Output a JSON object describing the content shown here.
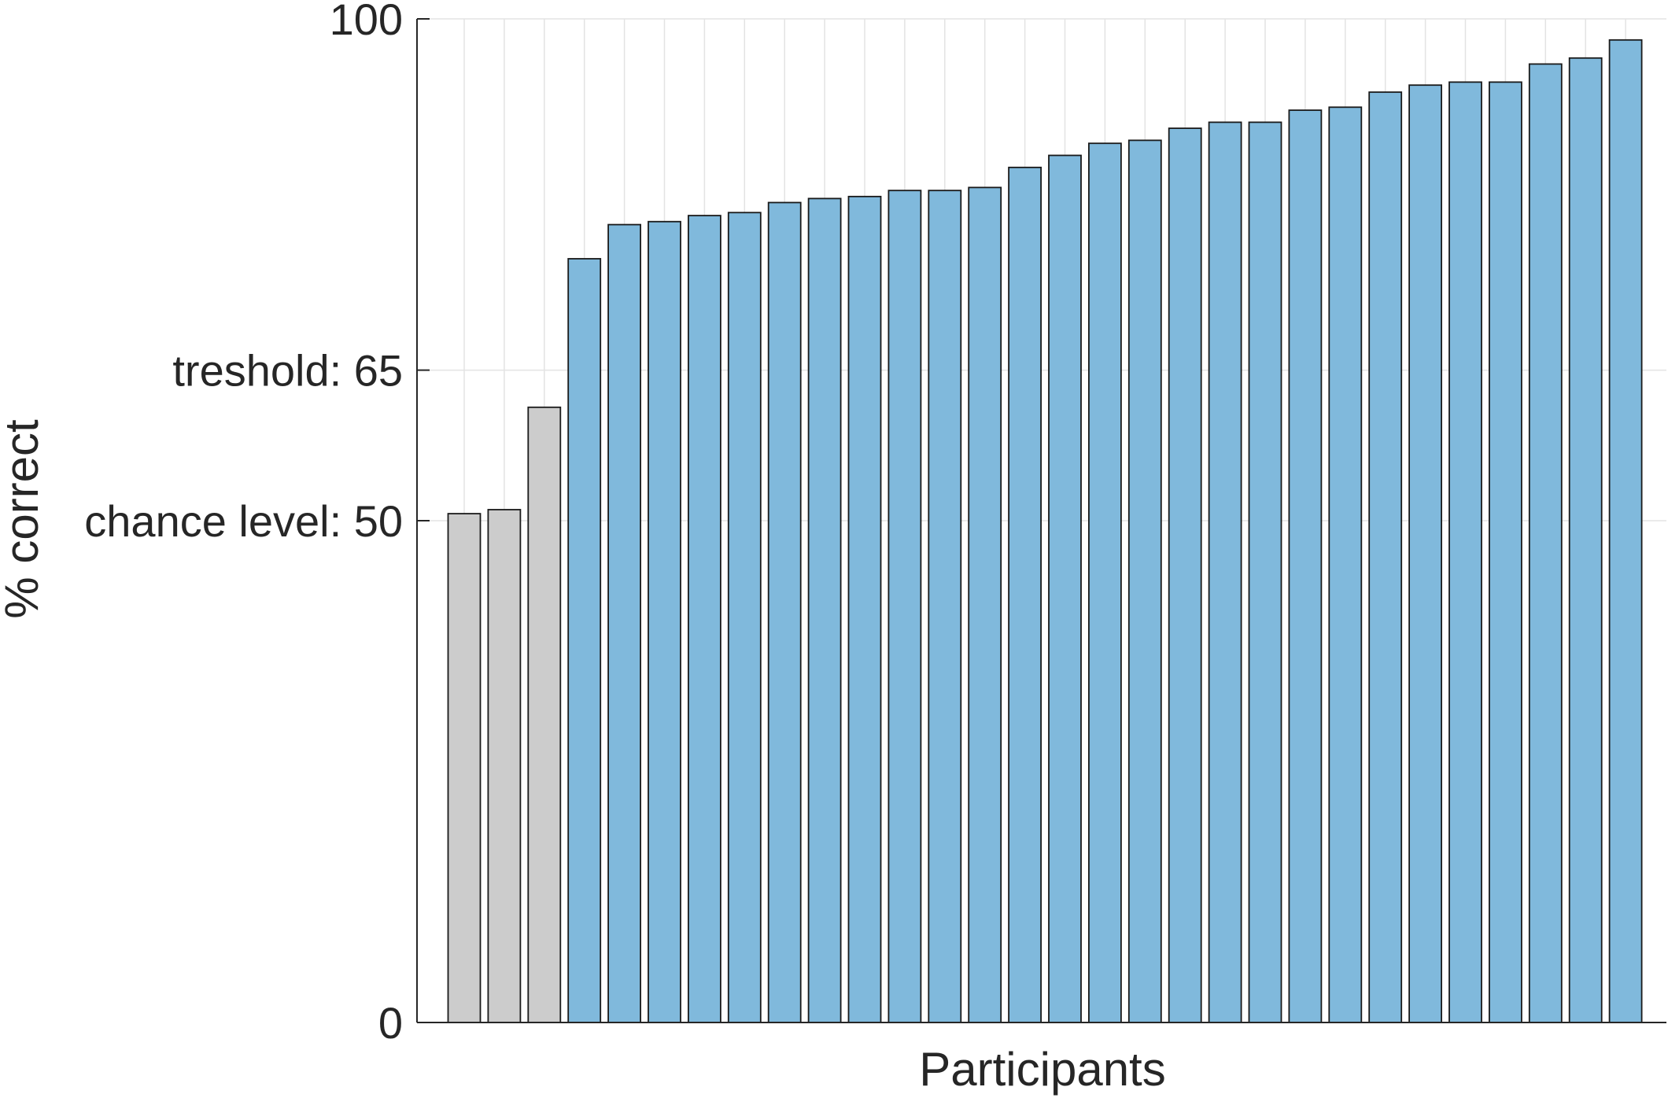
{
  "chart_data": {
    "type": "bar",
    "xlabel": "Participants",
    "ylabel": "% correct",
    "ylim": [
      0,
      100
    ],
    "yticks": [
      {
        "value": 0,
        "label": "0"
      },
      {
        "value": 50,
        "label": "chance level: 50"
      },
      {
        "value": 65,
        "label": "treshold: 65"
      },
      {
        "value": 100,
        "label": "100"
      }
    ],
    "grid": true,
    "colors": {
      "below_threshold": "#cccccc",
      "above_threshold": "#80b9dc",
      "edge": "#1a1a1a",
      "grid": "#e3e3e3",
      "axis": "#262626"
    },
    "threshold": 65,
    "values": [
      50.7,
      51.1,
      61.3,
      76.1,
      79.5,
      79.8,
      80.4,
      80.7,
      81.7,
      82.1,
      82.3,
      82.9,
      82.9,
      83.2,
      85.2,
      86.4,
      87.6,
      87.9,
      89.1,
      89.7,
      89.7,
      90.9,
      91.2,
      92.7,
      93.4,
      93.7,
      93.7,
      95.5,
      96.1,
      97.9
    ]
  }
}
